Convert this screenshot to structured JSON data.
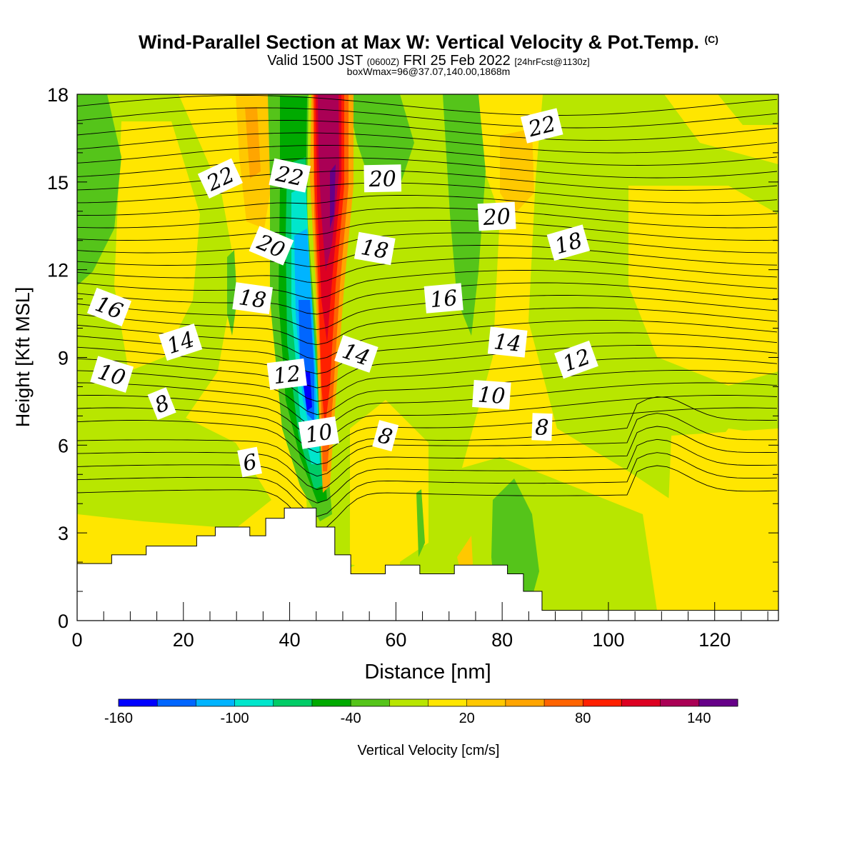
{
  "header": {
    "title": "Wind-Parallel Section at Max W: Vertical Velocity & Pot.Temp.",
    "title_mark": "(C)",
    "valid_prefix": "Valid 1500 JST",
    "valid_zulu": "(0600Z)",
    "valid_date": "FRI 25 Feb 2022",
    "forecast_info": "[24hrFcst@1130z]",
    "box_wmax": "boxWmax=96@37.07,140.00,1868m"
  },
  "chart_data": {
    "type": "heatmap",
    "subtype": "vertical cross-section with filled contours (vertical velocity) and line contours (potential temperature)",
    "xlabel": "Distance [nm]",
    "ylabel": "Height [Kft MSL]",
    "xlim": [
      0,
      132
    ],
    "ylim": [
      0,
      18
    ],
    "x_ticks": [
      0,
      20,
      40,
      60,
      80,
      100,
      120
    ],
    "y_ticks": [
      0,
      3,
      6,
      9,
      12,
      15,
      18
    ],
    "colorbar": {
      "label": "Vertical Velocity [cm/s]",
      "tick_labels": [
        -160,
        -100,
        -40,
        20,
        80,
        140
      ],
      "min": -160,
      "max": 160,
      "step": 20,
      "colors": [
        "#0000ff",
        "#0066ff",
        "#00b4ff",
        "#00e6cc",
        "#00cc66",
        "#00aa00",
        "#55c41a",
        "#b8e600",
        "#ffe600",
        "#ffc800",
        "#ffa500",
        "#ff6400",
        "#ff2000",
        "#dd0022",
        "#aa0055",
        "#660088"
      ]
    },
    "theta_contour_labels": [
      {
        "text": "22",
        "x": 27,
        "y": 15.1
      },
      {
        "text": "22",
        "x": 40,
        "y": 15.2
      },
      {
        "text": "20",
        "x": 57.5,
        "y": 15.1
      },
      {
        "text": "22",
        "x": 87.5,
        "y": 16.9
      },
      {
        "text": "20",
        "x": 36.5,
        "y": 12.8
      },
      {
        "text": "18",
        "x": 56,
        "y": 12.7
      },
      {
        "text": "20",
        "x": 79,
        "y": 13.8
      },
      {
        "text": "18",
        "x": 92.5,
        "y": 12.9
      },
      {
        "text": "16",
        "x": 6,
        "y": 10.7
      },
      {
        "text": "18",
        "x": 33,
        "y": 11.0
      },
      {
        "text": "16",
        "x": 69,
        "y": 11.0
      },
      {
        "text": "14",
        "x": 19.5,
        "y": 9.5
      },
      {
        "text": "14",
        "x": 52.5,
        "y": 9.1
      },
      {
        "text": "14",
        "x": 81,
        "y": 9.5
      },
      {
        "text": "12",
        "x": 39.5,
        "y": 8.4
      },
      {
        "text": "12",
        "x": 94,
        "y": 8.9
      },
      {
        "text": "10",
        "x": 6.5,
        "y": 8.4
      },
      {
        "text": "10",
        "x": 78,
        "y": 7.7
      },
      {
        "text": "10",
        "x": 45.5,
        "y": 6.4
      },
      {
        "text": "8",
        "x": 16,
        "y": 7.4
      },
      {
        "text": "8",
        "x": 58,
        "y": 6.3
      },
      {
        "text": "8",
        "x": 87.5,
        "y": 6.6
      },
      {
        "text": "6",
        "x": 32.5,
        "y": 5.4
      }
    ],
    "terrain_height_kft": [
      {
        "x0": 0,
        "x1": 6.5,
        "h": 1.95
      },
      {
        "x0": 6.5,
        "x1": 13,
        "h": 2.25
      },
      {
        "x0": 13,
        "x1": 22.5,
        "h": 2.55
      },
      {
        "x0": 22.5,
        "x1": 26,
        "h": 2.9
      },
      {
        "x0": 26,
        "x1": 32.5,
        "h": 3.2
      },
      {
        "x0": 32.5,
        "x1": 35.5,
        "h": 2.9
      },
      {
        "x0": 35.5,
        "x1": 39,
        "h": 3.5
      },
      {
        "x0": 39,
        "x1": 45,
        "h": 3.85
      },
      {
        "x0": 45,
        "x1": 48.5,
        "h": 3.2
      },
      {
        "x0": 48.5,
        "x1": 51.5,
        "h": 2.25
      },
      {
        "x0": 51.5,
        "x1": 58,
        "h": 1.6
      },
      {
        "x0": 58,
        "x1": 64.5,
        "h": 1.9
      },
      {
        "x0": 64.5,
        "x1": 71,
        "h": 1.6
      },
      {
        "x0": 71,
        "x1": 81,
        "h": 1.9
      },
      {
        "x0": 81,
        "x1": 84,
        "h": 1.6
      },
      {
        "x0": 84,
        "x1": 87.5,
        "h": 1.0
      },
      {
        "x0": 87.5,
        "x1": 132,
        "h": 0.35
      }
    ]
  }
}
